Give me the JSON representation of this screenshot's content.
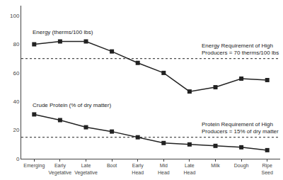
{
  "chart_data": {
    "type": "line",
    "categories": [
      "Emerging",
      "Early\nVegetative",
      "Late\nVegetative",
      "Boot",
      "Early\nHead",
      "Mid\nHead",
      "Late\nHead",
      "Milk",
      "Dough",
      "Ripe\nSeed"
    ],
    "series": [
      {
        "name": "Energy (therms/100 lbs)",
        "color": "#222222",
        "marker": "square",
        "values": [
          80,
          82,
          82,
          75,
          67,
          60,
          47,
          50,
          56,
          55
        ],
        "requirement": 70,
        "requirement_label": "Energy Requirement of High\nProducers = 70 therms/100 lbs"
      },
      {
        "name": "Crude Protein (% of dry matter)",
        "color": "#222222",
        "marker": "square",
        "values": [
          31,
          27,
          22,
          19,
          15,
          11,
          10,
          9,
          8,
          6
        ],
        "requirement": 15,
        "requirement_label": "Protein Requirement of High\nProducers = 15% of dry matter"
      }
    ],
    "ylim": [
      0,
      107
    ],
    "yticks": [
      0,
      20,
      40,
      60,
      80,
      100
    ],
    "grid": false
  }
}
